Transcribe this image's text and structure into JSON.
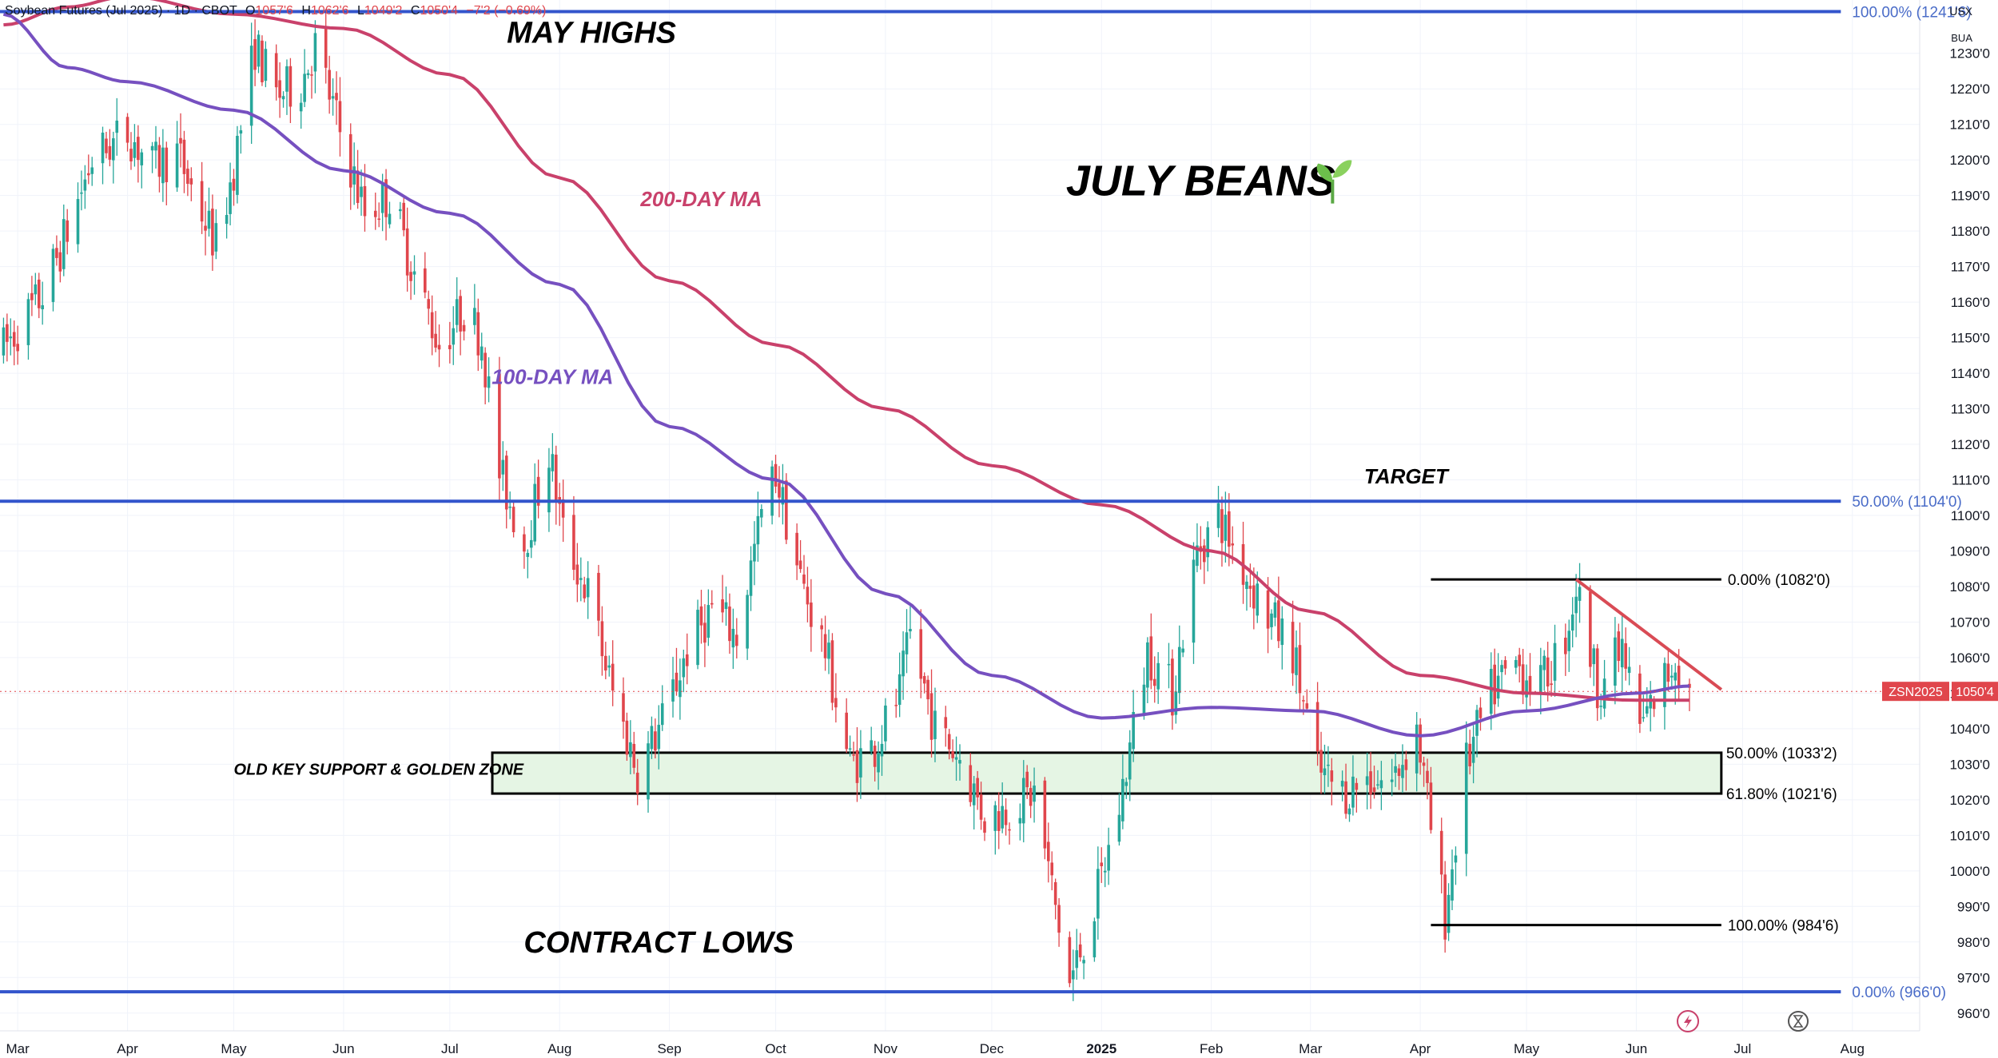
{
  "header": {
    "symbol_desc": "Soybean Futures (Jul 2025) · 1D · CBOT",
    "o_label": "O",
    "o": "1057'6",
    "h_label": "H",
    "h": "1062'6",
    "l_label": "L",
    "l": "1049'2",
    "c_label": "C",
    "c": "1050'4",
    "change": "−7'2 (−0.69%)"
  },
  "currency": {
    "line1": "USX",
    "line2": "BUA"
  },
  "ticker_badge": {
    "symbol": "ZSN2025",
    "price": "1050'4"
  },
  "colors": {
    "up": "#26a69a",
    "down": "#e0464c",
    "ma200": "#c9416b",
    "ma100": "#7650c0",
    "fib_line": "#3355cc",
    "fib_label": "#4a6cc8",
    "zone_fill": "#e5f5e4",
    "trendline": "#d94b55"
  },
  "chart_data": {
    "type": "candlestick",
    "title": "Soybean Futures (Jul 2025) · 1D · CBOT",
    "x_range": [
      "2024-02-25",
      "2025-08-20"
    ],
    "ylim": [
      955,
      1245
    ],
    "y_ticks": [
      {
        "v": 960,
        "label": "960'0"
      },
      {
        "v": 970,
        "label": "970'0"
      },
      {
        "v": 980,
        "label": "980'0"
      },
      {
        "v": 990,
        "label": "990'0"
      },
      {
        "v": 1000,
        "label": "1000'0"
      },
      {
        "v": 1010,
        "label": "1010'0"
      },
      {
        "v": 1020,
        "label": "1020'0"
      },
      {
        "v": 1030,
        "label": "1030'0"
      },
      {
        "v": 1040,
        "label": "1040'0"
      },
      {
        "v": 1050,
        "label": "1050'0"
      },
      {
        "v": 1060,
        "label": "1060'0"
      },
      {
        "v": 1070,
        "label": "1070'0"
      },
      {
        "v": 1080,
        "label": "1080'0"
      },
      {
        "v": 1090,
        "label": "1090'0"
      },
      {
        "v": 1100,
        "label": "1100'0"
      },
      {
        "v": 1110,
        "label": "1110'0"
      },
      {
        "v": 1120,
        "label": "1120'0"
      },
      {
        "v": 1130,
        "label": "1130'0"
      },
      {
        "v": 1140,
        "label": "1140'0"
      },
      {
        "v": 1150,
        "label": "1150'0"
      },
      {
        "v": 1160,
        "label": "1160'0"
      },
      {
        "v": 1170,
        "label": "1170'0"
      },
      {
        "v": 1180,
        "label": "1180'0"
      },
      {
        "v": 1190,
        "label": "1190'0"
      },
      {
        "v": 1200,
        "label": "1200'0"
      },
      {
        "v": 1210,
        "label": "1210'0"
      },
      {
        "v": 1220,
        "label": "1220'0"
      },
      {
        "v": 1230,
        "label": "1230'0"
      }
    ],
    "x_ticks": [
      {
        "date": "2024-03-01",
        "label": "Mar"
      },
      {
        "date": "2024-04-01",
        "label": "Apr"
      },
      {
        "date": "2024-05-01",
        "label": "May"
      },
      {
        "date": "2024-06-01",
        "label": "Jun"
      },
      {
        "date": "2024-07-01",
        "label": "Jul"
      },
      {
        "date": "2024-08-01",
        "label": "Aug"
      },
      {
        "date": "2024-09-01",
        "label": "Sep"
      },
      {
        "date": "2024-10-01",
        "label": "Oct"
      },
      {
        "date": "2024-11-01",
        "label": "Nov"
      },
      {
        "date": "2024-12-01",
        "label": "Dec"
      },
      {
        "date": "2025-01-01",
        "label": "2025",
        "bold": true
      },
      {
        "date": "2025-02-01",
        "label": "Feb"
      },
      {
        "date": "2025-03-01",
        "label": "Mar"
      },
      {
        "date": "2025-04-01",
        "label": "Apr"
      },
      {
        "date": "2025-05-01",
        "label": "May"
      },
      {
        "date": "2025-06-01",
        "label": "Jun"
      },
      {
        "date": "2025-07-01",
        "label": "Jul"
      },
      {
        "date": "2025-08-01",
        "label": "Aug"
      }
    ],
    "price_path": [
      [
        "2024-02-26",
        1147
      ],
      [
        "2024-03-08",
        1162
      ],
      [
        "2024-03-15",
        1180
      ],
      [
        "2024-03-22",
        1200
      ],
      [
        "2024-04-01",
        1208
      ],
      [
        "2024-04-08",
        1198
      ],
      [
        "2024-04-15",
        1202
      ],
      [
        "2024-04-22",
        1185
      ],
      [
        "2024-04-26",
        1176
      ],
      [
        "2024-05-01",
        1198
      ],
      [
        "2024-05-07",
        1232
      ],
      [
        "2024-05-13",
        1218
      ],
      [
        "2024-05-20",
        1222
      ],
      [
        "2024-05-24",
        1232
      ],
      [
        "2024-05-31",
        1208
      ],
      [
        "2024-06-07",
        1185
      ],
      [
        "2024-06-14",
        1190
      ],
      [
        "2024-06-21",
        1168
      ],
      [
        "2024-06-28",
        1148
      ],
      [
        "2024-07-05",
        1158
      ],
      [
        "2024-07-10",
        1150
      ],
      [
        "2024-07-15",
        1112
      ],
      [
        "2024-07-22",
        1092
      ],
      [
        "2024-07-29",
        1118
      ],
      [
        "2024-08-02",
        1095
      ],
      [
        "2024-08-09",
        1078
      ],
      [
        "2024-08-16",
        1050
      ],
      [
        "2024-08-23",
        1028
      ],
      [
        "2024-08-30",
        1042
      ],
      [
        "2024-09-06",
        1062
      ],
      [
        "2024-09-13",
        1074
      ],
      [
        "2024-09-20",
        1066
      ],
      [
        "2024-09-27",
        1100
      ],
      [
        "2024-10-01",
        1112
      ],
      [
        "2024-10-08",
        1082
      ],
      [
        "2024-10-15",
        1062
      ],
      [
        "2024-10-22",
        1030
      ],
      [
        "2024-10-29",
        1035
      ],
      [
        "2024-11-05",
        1050
      ],
      [
        "2024-11-08",
        1066
      ],
      [
        "2024-11-15",
        1040
      ],
      [
        "2024-11-22",
        1032
      ],
      [
        "2024-11-29",
        1015
      ],
      [
        "2024-12-06",
        1018
      ],
      [
        "2024-12-13",
        1022
      ],
      [
        "2024-12-18",
        995
      ],
      [
        "2024-12-23",
        968
      ],
      [
        "2024-12-30",
        990
      ],
      [
        "2025-01-06",
        1018
      ],
      [
        "2025-01-10",
        1040
      ],
      [
        "2025-01-14",
        1062
      ],
      [
        "2025-01-21",
        1050
      ],
      [
        "2025-01-28",
        1090
      ],
      [
        "2025-02-03",
        1100
      ],
      [
        "2025-02-10",
        1085
      ],
      [
        "2025-02-17",
        1072
      ],
      [
        "2025-02-24",
        1062
      ],
      [
        "2025-03-03",
        1028
      ],
      [
        "2025-03-10",
        1022
      ],
      [
        "2025-03-17",
        1026
      ],
      [
        "2025-03-24",
        1025
      ],
      [
        "2025-03-31",
        1040
      ],
      [
        "2025-04-04",
        1012
      ],
      [
        "2025-04-08",
        987
      ],
      [
        "2025-04-14",
        1030
      ],
      [
        "2025-04-21",
        1050
      ],
      [
        "2025-04-28",
        1058
      ],
      [
        "2025-05-05",
        1052
      ],
      [
        "2025-05-12",
        1066
      ],
      [
        "2025-05-15",
        1080
      ],
      [
        "2025-05-21",
        1052
      ],
      [
        "2025-05-28",
        1062
      ],
      [
        "2025-06-02",
        1040
      ],
      [
        "2025-06-06",
        1048
      ],
      [
        "2025-06-12",
        1060
      ],
      [
        "2025-06-16",
        1050
      ]
    ],
    "series": [
      {
        "name": "200-DAY MA",
        "values": [
          [
            "2024-02-26",
            1238
          ],
          [
            "2024-03-15",
            1243
          ],
          [
            "2024-04-01",
            1246
          ],
          [
            "2024-05-01",
            1241
          ],
          [
            "2024-06-01",
            1237
          ],
          [
            "2024-07-01",
            1224
          ],
          [
            "2024-08-01",
            1195
          ],
          [
            "2024-09-01",
            1166
          ],
          [
            "2024-10-01",
            1148
          ],
          [
            "2024-11-01",
            1130
          ],
          [
            "2024-12-01",
            1114
          ],
          [
            "2025-01-01",
            1103
          ],
          [
            "2025-02-01",
            1090
          ],
          [
            "2025-03-01",
            1073
          ],
          [
            "2025-04-01",
            1055
          ],
          [
            "2025-05-01",
            1050
          ],
          [
            "2025-06-01",
            1048
          ],
          [
            "2025-06-16",
            1048
          ]
        ]
      },
      {
        "name": "100-DAY MA",
        "values": [
          [
            "2024-02-26",
            1241
          ],
          [
            "2024-03-15",
            1226
          ],
          [
            "2024-04-01",
            1222
          ],
          [
            "2024-05-01",
            1214
          ],
          [
            "2024-06-01",
            1197
          ],
          [
            "2024-07-01",
            1185
          ],
          [
            "2024-08-01",
            1165
          ],
          [
            "2024-09-01",
            1125
          ],
          [
            "2024-10-01",
            1110
          ],
          [
            "2024-11-01",
            1078
          ],
          [
            "2024-12-01",
            1055
          ],
          [
            "2025-01-01",
            1043
          ],
          [
            "2025-02-01",
            1046
          ],
          [
            "2025-03-01",
            1045
          ],
          [
            "2025-04-01",
            1038
          ],
          [
            "2025-05-01",
            1045
          ],
          [
            "2025-06-01",
            1050
          ],
          [
            "2025-06-16",
            1052
          ]
        ]
      }
    ],
    "fib_levels": [
      {
        "value": 1241.75,
        "label": "100.00% (1241'6)",
        "from": "2024-02-25",
        "to": "2025-07-31"
      },
      {
        "value": 1104,
        "label": "50.00% (1104'0)",
        "from": "2024-02-25",
        "to": "2025-07-31"
      },
      {
        "value": 966,
        "label": "0.00% (966'0)",
        "from": "2024-02-25",
        "to": "2025-07-31"
      }
    ],
    "fib_levels_2": [
      {
        "value": 1082,
        "label": "0.00% (1082'0)"
      },
      {
        "value": 984.75,
        "label": "100.00% (984'6)"
      }
    ],
    "zone": {
      "top": 1033.25,
      "bottom": 1021.75,
      "from": "2024-07-13",
      "to": "2025-06-25",
      "top_label": "50.00% (1033'2)",
      "bottom_label": "61.80% (1021'6)"
    },
    "trendline": {
      "from": [
        "2025-05-15",
        1082
      ],
      "to": [
        "2025-06-25",
        1051
      ]
    },
    "last_price": {
      "value": 1050.5,
      "label": "1050'4"
    },
    "annotations": [
      {
        "text": "MAY HIGHS",
        "date": "2024-08-10",
        "value": 1233,
        "style": "caps"
      },
      {
        "text": "200-DAY MA",
        "date": "2024-09-10",
        "value": 1187,
        "style": "ma200"
      },
      {
        "text": "JULY BEANS",
        "date": "2025-01-29",
        "value": 1190,
        "style": "title",
        "icon": "seedling-icon"
      },
      {
        "text": "100-DAY MA",
        "date": "2024-07-30",
        "value": 1137,
        "style": "ma100"
      },
      {
        "text": "TARGET",
        "date": "2025-03-28",
        "value": 1109,
        "style": "small"
      },
      {
        "text": "OLD KEY SUPPORT & GOLDEN ZONE",
        "date": "2024-05-01",
        "value": 1027,
        "style": "tiny"
      },
      {
        "text": "CONTRACT LOWS",
        "date": "2024-08-29",
        "value": 977,
        "style": "caps"
      }
    ]
  }
}
